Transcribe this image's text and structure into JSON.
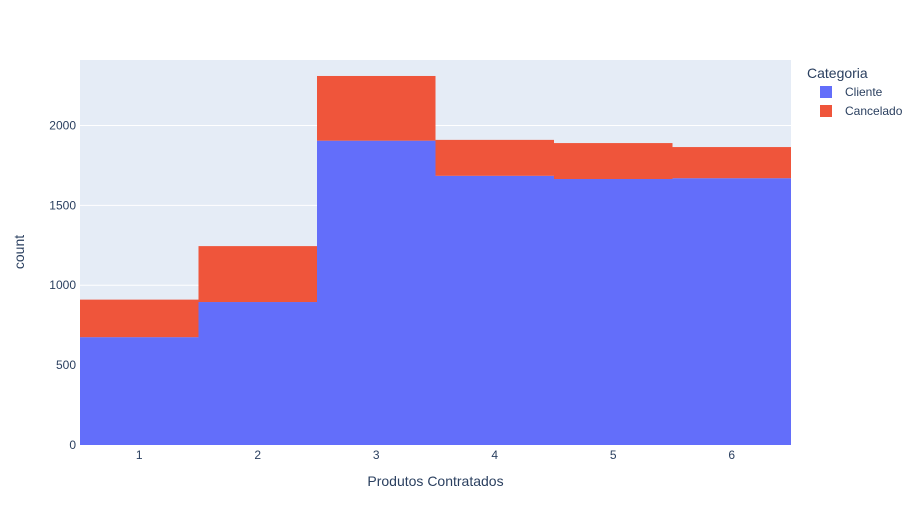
{
  "chart_data": {
    "type": "bar",
    "barmode": "stack",
    "categories": [
      "1",
      "2",
      "3",
      "4",
      "5",
      "6"
    ],
    "series": [
      {
        "name": "Cliente",
        "color": "#636efa",
        "values": [
          675,
          895,
          1905,
          1685,
          1665,
          1670
        ]
      },
      {
        "name": "Cancelado",
        "color": "#ef553b",
        "values": [
          235,
          350,
          405,
          225,
          225,
          195
        ]
      }
    ],
    "xlabel": "Produtos Contratados",
    "ylabel": "count",
    "ylim": [
      0,
      2410
    ],
    "yticks": [
      0,
      500,
      1000,
      1500,
      2000
    ],
    "grid": true,
    "plot_background": "#e5ecf6",
    "legend": {
      "title": "Categoria",
      "placement": "top-right"
    }
  }
}
